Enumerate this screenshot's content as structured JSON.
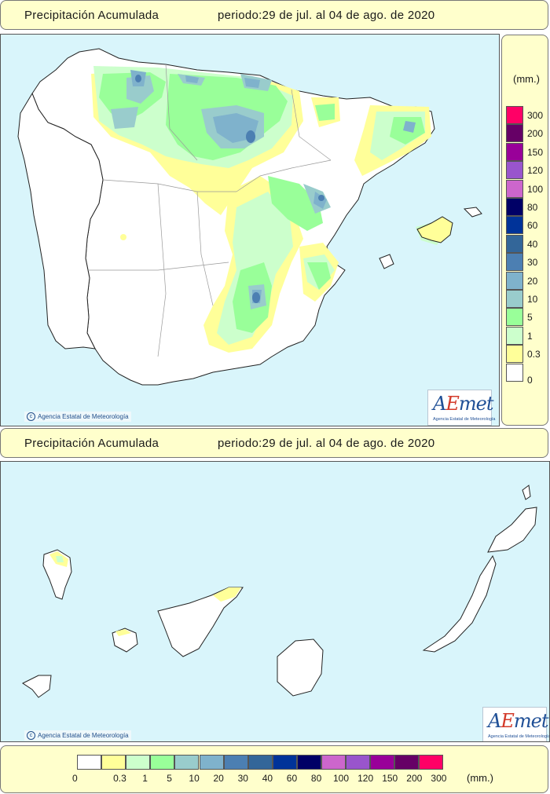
{
  "header_top": {
    "title": "Precipitación Acumulada",
    "period": "periodo:29 de jul. al 04 de ago. de 2020"
  },
  "header_bottom": {
    "title": "Precipitación Acumulada",
    "period": "periodo:29 de jul. al 04 de ago. de 2020"
  },
  "credit": "Agencia Estatal de Meteorología",
  "logo": {
    "mark": "AEmet",
    "subtitle": "Agencia Estatal de Meteorología"
  },
  "legend": {
    "unit": "(mm.)",
    "classes": [
      {
        "label": "0",
        "color": "#ffffff"
      },
      {
        "label": "0.3",
        "color": "#ffff99"
      },
      {
        "label": "1",
        "color": "#ccffcc"
      },
      {
        "label": "5",
        "color": "#99ff99"
      },
      {
        "label": "10",
        "color": "#99cccc"
      },
      {
        "label": "20",
        "color": "#7fb2cc"
      },
      {
        "label": "30",
        "color": "#4c7fb2"
      },
      {
        "label": "40",
        "color": "#336699"
      },
      {
        "label": "60",
        "color": "#003399"
      },
      {
        "label": "80",
        "color": "#000066"
      },
      {
        "label": "100",
        "color": "#cc66cc"
      },
      {
        "label": "120",
        "color": "#9955cc"
      },
      {
        "label": "150",
        "color": "#990099"
      },
      {
        "label": "200",
        "color": "#660066"
      },
      {
        "label": "300",
        "color": "#ff0066"
      }
    ]
  },
  "map_colors": {
    "sea": "#d9f5fb",
    "land": "#ffffff"
  }
}
